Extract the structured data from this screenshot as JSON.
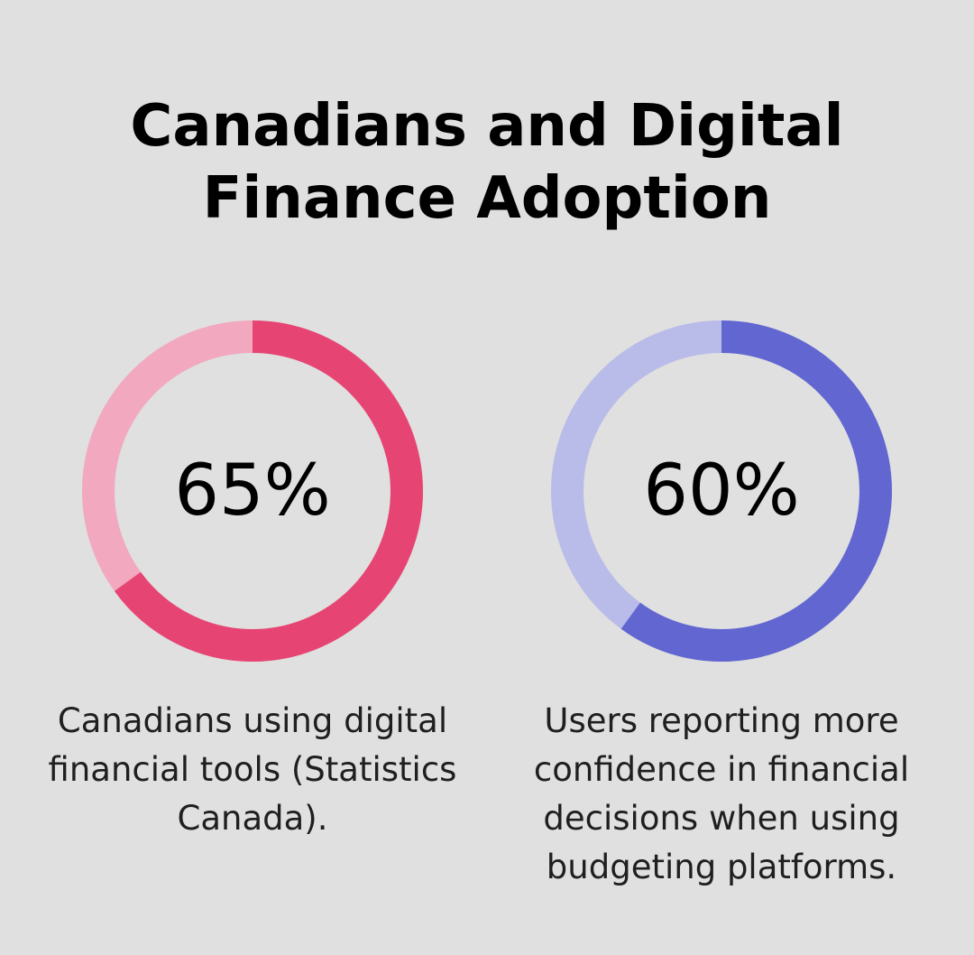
{
  "title": {
    "line1": "Canadians and Digital",
    "line2": "Finance Adoption"
  },
  "chart_data": [
    {
      "type": "pie",
      "value": 65,
      "label": "65%",
      "caption_lines": [
        "Canadians using digital",
        "financial tools (Statistics",
        "Canada)."
      ],
      "colors": {
        "filled": "#e64574",
        "remainder": "#f2a8bf"
      }
    },
    {
      "type": "pie",
      "value": 60,
      "label": "60%",
      "caption_lines": [
        "Users reporting more",
        "confidence in financial",
        "decisions when using",
        "budgeting platforms."
      ],
      "colors": {
        "filled": "#6166d1",
        "remainder": "#b9bbe9"
      }
    }
  ]
}
